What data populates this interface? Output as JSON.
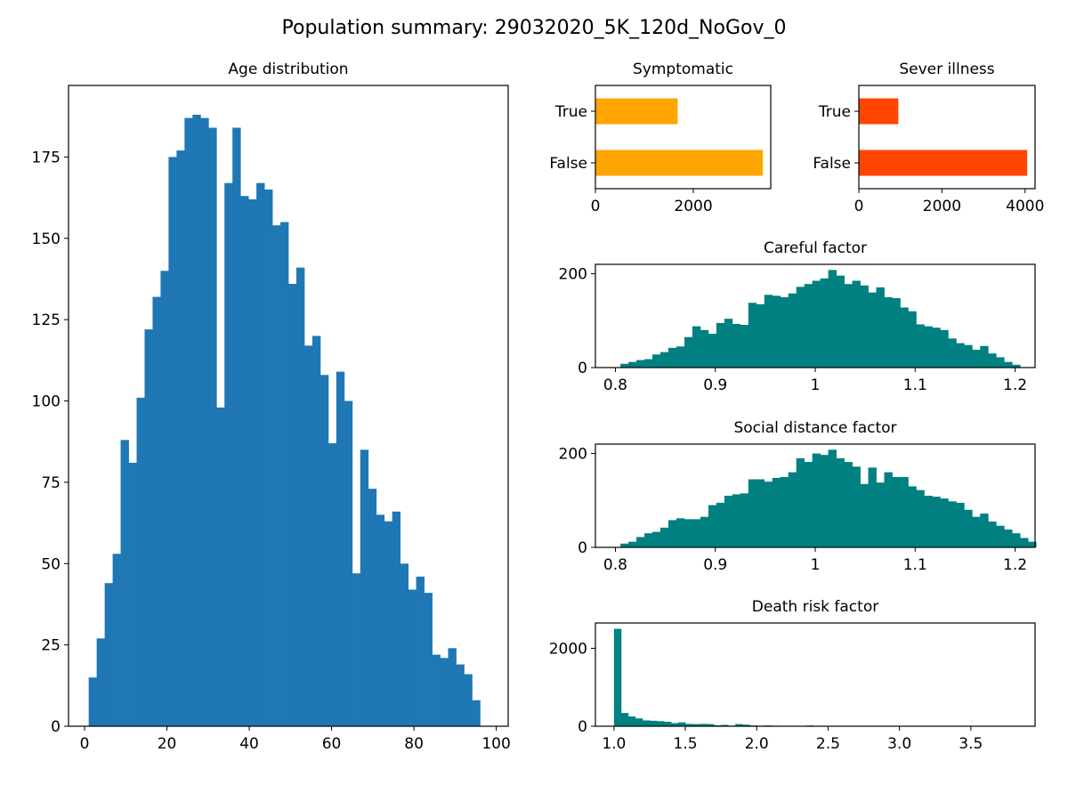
{
  "figure": {
    "title": "Population summary: 29032020_5K_120d_NoGov_0"
  },
  "colors": {
    "age": "#1f77b4",
    "symptomatic": "#ffa500",
    "severe": "#ff4500",
    "factor": "#008080"
  },
  "chart_data": [
    {
      "id": "age",
      "type": "bar",
      "title": "Age distribution",
      "xlabel": "",
      "ylabel": "",
      "xlim": [
        -3.9,
        102.9
      ],
      "ylim": [
        0,
        197
      ],
      "x_ticks": [
        0,
        20,
        40,
        60,
        80,
        100
      ],
      "y_ticks": [
        0,
        25,
        50,
        75,
        100,
        125,
        150,
        175
      ],
      "bin_start": 1,
      "bin_width": 1.94,
      "values": [
        15,
        27,
        44,
        53,
        88,
        81,
        101,
        122,
        132,
        140,
        175,
        177,
        187,
        188,
        187,
        184,
        98,
        167,
        184,
        163,
        162,
        167,
        165,
        154,
        155,
        136,
        141,
        117,
        120,
        108,
        87,
        109,
        100,
        47,
        85,
        73,
        65,
        63,
        66,
        50,
        42,
        46,
        41,
        22,
        21,
        24,
        19,
        16,
        8
      ],
      "color": "#1f77b4"
    },
    {
      "id": "symptomatic",
      "type": "bar",
      "orientation": "horizontal",
      "title": "Symptomatic",
      "categories": [
        "False",
        "True"
      ],
      "values": [
        3420,
        1680
      ],
      "xlim": [
        0,
        3580
      ],
      "x_ticks": [
        0,
        2000
      ],
      "color": "#ffa500"
    },
    {
      "id": "severe",
      "type": "bar",
      "orientation": "horizontal",
      "title": "Sever illness",
      "categories": [
        "False",
        "True"
      ],
      "values": [
        4050,
        950
      ],
      "xlim": [
        0,
        4240
      ],
      "x_ticks": [
        0,
        2000,
        4000
      ],
      "color": "#ff4500"
    },
    {
      "id": "careful",
      "type": "bar",
      "title": "Careful factor",
      "xlim": [
        0.78,
        1.22
      ],
      "ylim": [
        0,
        220
      ],
      "x_ticks": [
        0.8,
        0.9,
        1.0,
        1.1,
        1.2
      ],
      "y_ticks": [
        0,
        200
      ],
      "bin_start": 0.805,
      "bin_width": 0.008,
      "values": [
        8,
        12,
        16,
        18,
        28,
        33,
        42,
        45,
        65,
        88,
        80,
        72,
        95,
        104,
        93,
        91,
        138,
        135,
        155,
        153,
        150,
        158,
        172,
        178,
        185,
        190,
        208,
        196,
        178,
        185,
        175,
        160,
        171,
        150,
        148,
        128,
        120,
        92,
        88,
        85,
        80,
        62,
        52,
        48,
        38,
        46,
        30,
        22,
        12,
        6
      ],
      "color": "#008080"
    },
    {
      "id": "social",
      "type": "bar",
      "title": "Social distance factor",
      "xlim": [
        0.78,
        1.22
      ],
      "ylim": [
        0,
        220
      ],
      "x_ticks": [
        0.8,
        0.9,
        1.0,
        1.1,
        1.2
      ],
      "y_ticks": [
        0,
        200
      ],
      "bin_start": 0.805,
      "bin_width": 0.008,
      "values": [
        8,
        12,
        22,
        30,
        33,
        42,
        58,
        62,
        60,
        60,
        65,
        90,
        95,
        110,
        113,
        115,
        145,
        145,
        140,
        148,
        150,
        160,
        190,
        182,
        200,
        197,
        208,
        190,
        182,
        172,
        135,
        170,
        138,
        160,
        150,
        150,
        130,
        122,
        110,
        108,
        104,
        98,
        95,
        80,
        65,
        72,
        55,
        46,
        38,
        30,
        20,
        12
      ],
      "color": "#008080"
    },
    {
      "id": "death",
      "type": "bar",
      "title": "Death risk factor",
      "xlim": [
        0.87,
        3.95
      ],
      "ylim": [
        0,
        2650
      ],
      "x_ticks": [
        1.0,
        1.5,
        2.0,
        2.5,
        3.0,
        3.5
      ],
      "x_tick_labels": [
        "1.0",
        "1.5",
        "2.0",
        "2.5",
        "3.0",
        "3.5"
      ],
      "y_ticks": [
        0,
        2000
      ],
      "bin_start": 1.0,
      "bin_width": 0.05,
      "values": [
        2500,
        340,
        250,
        200,
        150,
        140,
        130,
        115,
        80,
        100,
        60,
        55,
        60,
        55,
        25,
        35,
        15,
        55,
        40,
        20,
        15,
        20,
        15,
        10,
        10,
        8,
        5,
        20,
        3,
        5,
        3,
        2,
        2,
        2,
        2,
        1,
        1,
        1,
        1,
        1,
        1,
        1,
        1,
        1,
        1,
        1,
        1,
        1,
        1,
        1,
        1,
        1,
        1,
        1,
        1,
        1
      ],
      "color": "#008080"
    }
  ]
}
